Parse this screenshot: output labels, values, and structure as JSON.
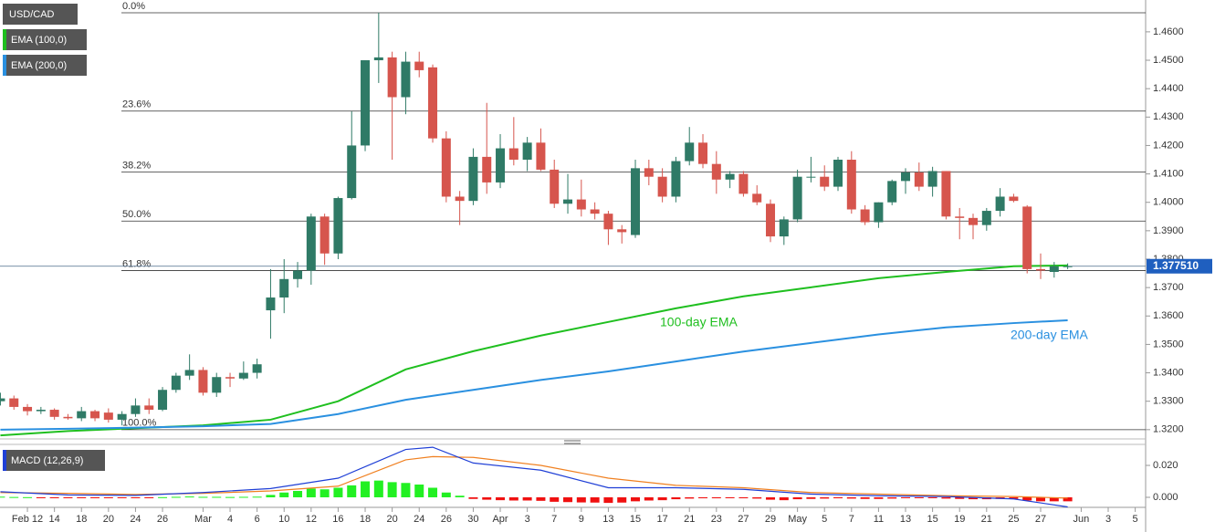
{
  "chart_data": [
    {
      "type": "candlestick",
      "symbol": "USD/CAD",
      "up_color": "#2f7a66",
      "down_color": "#d6554d",
      "xlim": [
        -0.03,
        84.77
      ],
      "ylim": [
        1.3177,
        1.4712
      ],
      "yticks": [
        {
          "value": 1.32,
          "label": "1.3200"
        },
        {
          "value": 1.33,
          "label": "1.3300"
        },
        {
          "value": 1.34,
          "label": "1.3400"
        },
        {
          "value": 1.35,
          "label": "1.3500"
        },
        {
          "value": 1.36,
          "label": "1.3600"
        },
        {
          "value": 1.37,
          "label": "1.3700"
        },
        {
          "value": 1.38,
          "label": "1.3800"
        },
        {
          "value": 1.39,
          "label": "1.3900"
        },
        {
          "value": 1.4,
          "label": "1.4000"
        },
        {
          "value": 1.41,
          "label": "1.4100"
        },
        {
          "value": 1.42,
          "label": "1.4200"
        },
        {
          "value": 1.43,
          "label": "1.4300"
        },
        {
          "value": 1.44,
          "label": "1.4400"
        },
        {
          "value": 1.45,
          "label": "1.4500"
        },
        {
          "value": 1.46,
          "label": "1.4600"
        }
      ],
      "open": [
        1.33,
        1.331,
        1.328,
        1.3265,
        1.327,
        1.3245,
        1.324,
        1.3265,
        1.326,
        1.3235,
        1.3255,
        1.3285,
        1.327,
        1.334,
        1.339,
        1.341,
        1.333,
        1.3385,
        1.338,
        1.34,
        1.362,
        1.3665,
        1.373,
        1.376,
        1.395,
        1.382,
        1.4015,
        1.42,
        1.45,
        1.451,
        1.437,
        1.4495,
        1.4475,
        1.4225,
        1.402,
        1.4005,
        1.416,
        1.407,
        1.419,
        1.415,
        1.421,
        1.4115,
        1.3995,
        1.401,
        1.3975,
        1.396,
        1.3905,
        1.3885,
        1.412,
        1.409,
        1.402,
        1.4145,
        1.421,
        1.4135,
        1.408,
        1.41,
        1.403,
        1.3995,
        1.388,
        1.394,
        1.409,
        1.409,
        1.4055,
        1.415,
        1.3975,
        1.393,
        1.4,
        1.4075,
        1.4105,
        1.4055,
        1.411,
        1.395,
        1.3945,
        1.392,
        1.397,
        1.402,
        1.3985,
        1.3765,
        1.3755,
        1.3775
      ],
      "high": [
        1.333,
        1.332,
        1.329,
        1.328,
        1.3275,
        1.3255,
        1.328,
        1.327,
        1.3275,
        1.3265,
        1.331,
        1.331,
        1.335,
        1.34,
        1.3465,
        1.342,
        1.34,
        1.34,
        1.344,
        1.345,
        1.3765,
        1.38,
        1.379,
        1.396,
        1.396,
        1.402,
        1.432,
        1.45,
        1.4667,
        1.453,
        1.453,
        1.453,
        1.4485,
        1.425,
        1.404,
        1.419,
        1.435,
        1.424,
        1.43,
        1.423,
        1.426,
        1.415,
        1.41,
        1.408,
        1.4,
        1.397,
        1.392,
        1.415,
        1.415,
        1.412,
        1.416,
        1.4265,
        1.424,
        1.418,
        1.411,
        1.411,
        1.406,
        1.401,
        1.395,
        1.4115,
        1.416,
        1.413,
        1.416,
        1.418,
        1.399,
        1.4,
        1.408,
        1.412,
        1.414,
        1.4125,
        1.411,
        1.398,
        1.396,
        1.398,
        1.405,
        1.403,
        1.399,
        1.382,
        1.379,
        1.3785
      ],
      "low": [
        1.3285,
        1.327,
        1.325,
        1.3255,
        1.3235,
        1.3235,
        1.323,
        1.323,
        1.3225,
        1.3215,
        1.3245,
        1.3255,
        1.3265,
        1.333,
        1.3375,
        1.332,
        1.3315,
        1.335,
        1.3375,
        1.338,
        1.352,
        1.361,
        1.37,
        1.371,
        1.378,
        1.38,
        1.401,
        1.418,
        1.442,
        1.415,
        1.431,
        1.444,
        1.421,
        1.4,
        1.392,
        1.399,
        1.403,
        1.405,
        1.413,
        1.411,
        1.411,
        1.398,
        1.396,
        1.395,
        1.394,
        1.385,
        1.3855,
        1.3875,
        1.406,
        1.4,
        1.4,
        1.413,
        1.412,
        1.403,
        1.405,
        1.402,
        1.399,
        1.386,
        1.385,
        1.393,
        1.407,
        1.404,
        1.404,
        1.396,
        1.392,
        1.391,
        1.399,
        1.403,
        1.404,
        1.402,
        1.394,
        1.387,
        1.387,
        1.39,
        1.395,
        1.4,
        1.375,
        1.373,
        1.3735,
        1.3765
      ],
      "close": [
        1.331,
        1.328,
        1.3265,
        1.327,
        1.3245,
        1.324,
        1.3265,
        1.324,
        1.3235,
        1.3255,
        1.3285,
        1.327,
        1.334,
        1.339,
        1.341,
        1.333,
        1.3385,
        1.338,
        1.34,
        1.343,
        1.3665,
        1.373,
        1.376,
        1.395,
        1.382,
        1.4015,
        1.42,
        1.45,
        1.451,
        1.437,
        1.4495,
        1.4465,
        1.4225,
        1.402,
        1.4005,
        1.416,
        1.407,
        1.419,
        1.415,
        1.421,
        1.4115,
        1.3995,
        1.401,
        1.3975,
        1.396,
        1.3905,
        1.3895,
        1.412,
        1.409,
        1.402,
        1.4145,
        1.421,
        1.4135,
        1.408,
        1.41,
        1.403,
        1.4,
        1.388,
        1.394,
        1.409,
        1.409,
        1.4055,
        1.415,
        1.3975,
        1.393,
        1.4,
        1.4075,
        1.4105,
        1.4055,
        1.411,
        1.395,
        1.3945,
        1.392,
        1.397,
        1.402,
        1.4005,
        1.3765,
        1.376,
        1.3775,
        1.37751
      ],
      "overlay_x": [
        0,
        5,
        10,
        15,
        20,
        25,
        30,
        35,
        40,
        45,
        50,
        55,
        60,
        65,
        70,
        75,
        79
      ],
      "series": [
        {
          "name": "EMA (100,0)",
          "color": "#1fbf1f",
          "values": [
            1.318,
            1.3195,
            1.3205,
            1.3215,
            1.3235,
            1.33,
            1.3412,
            1.3476,
            1.3531,
            1.3579,
            1.3627,
            1.3669,
            1.3701,
            1.3733,
            1.3755,
            1.3775,
            1.3778
          ]
        },
        {
          "name": "EMA (200,0)",
          "color": "#2a90e0",
          "values": [
            1.32,
            1.3203,
            1.3207,
            1.3212,
            1.322,
            1.3255,
            1.3305,
            1.334,
            1.3375,
            1.3405,
            1.344,
            1.3475,
            1.3505,
            1.3535,
            1.356,
            1.3575,
            1.3585
          ]
        }
      ],
      "annotations": [
        {
          "text": "100-day EMA",
          "color": "#1fbf1f"
        },
        {
          "text": "200-day EMA",
          "color": "#2a90e0"
        }
      ],
      "levels": [
        {
          "value": 1.4667,
          "label": "0.0%"
        },
        {
          "value": 1.4321,
          "label": "23.6%"
        },
        {
          "value": 1.4107,
          "label": "38.2%"
        },
        {
          "value": 1.3934,
          "label": "50.0%"
        },
        {
          "value": 1.376,
          "label": "61.8%"
        },
        {
          "value": 1.32,
          "label": "100.0%"
        }
      ],
      "last_price": {
        "value": 1.37751,
        "label": "1.377510"
      }
    },
    {
      "type": "macd",
      "legend": "MACD (12,26,9)",
      "xlim": [
        -0.03,
        84.77
      ],
      "ylim": [
        -0.0063,
        0.0326
      ],
      "yticks": [
        {
          "value": 0.0,
          "label": "0.000"
        },
        {
          "value": 0.02,
          "label": "0.020"
        }
      ],
      "xticks": [
        {
          "value": 2,
          "label": "Feb 12"
        },
        {
          "value": 4,
          "label": "14"
        },
        {
          "value": 6,
          "label": "18"
        },
        {
          "value": 8,
          "label": "20"
        },
        {
          "value": 10,
          "label": "24"
        },
        {
          "value": 12,
          "label": "26"
        },
        {
          "value": 15,
          "label": "Mar"
        },
        {
          "value": 17,
          "label": "4"
        },
        {
          "value": 19,
          "label": "6"
        },
        {
          "value": 21,
          "label": "10"
        },
        {
          "value": 23,
          "label": "12"
        },
        {
          "value": 25,
          "label": "16"
        },
        {
          "value": 27,
          "label": "18"
        },
        {
          "value": 29,
          "label": "20"
        },
        {
          "value": 31,
          "label": "24"
        },
        {
          "value": 33,
          "label": "26"
        },
        {
          "value": 35,
          "label": "30"
        },
        {
          "value": 37,
          "label": "Apr"
        },
        {
          "value": 39,
          "label": "3"
        },
        {
          "value": 41,
          "label": "7"
        },
        {
          "value": 43,
          "label": "9"
        },
        {
          "value": 45,
          "label": "13"
        },
        {
          "value": 47,
          "label": "15"
        },
        {
          "value": 49,
          "label": "17"
        },
        {
          "value": 51,
          "label": "21"
        },
        {
          "value": 53,
          "label": "23"
        },
        {
          "value": 55,
          "label": "27"
        },
        {
          "value": 57,
          "label": "29"
        },
        {
          "value": 59,
          "label": "May"
        },
        {
          "value": 61,
          "label": "5"
        },
        {
          "value": 63,
          "label": "7"
        },
        {
          "value": 65,
          "label": "11"
        },
        {
          "value": 67,
          "label": "13"
        },
        {
          "value": 69,
          "label": "15"
        },
        {
          "value": 71,
          "label": "19"
        },
        {
          "value": 73,
          "label": "21"
        },
        {
          "value": 75,
          "label": "25"
        },
        {
          "value": 77,
          "label": "27"
        },
        {
          "value": 80,
          "label": "Jun"
        },
        {
          "value": 82,
          "label": "3"
        },
        {
          "value": 84,
          "label": "5"
        }
      ],
      "hist_up_color": "#22f022",
      "hist_down_color": "#f01010",
      "histogram": [
        0.0004,
        0.0002,
        0.0001,
        -0.0001,
        -0.0002,
        -0.0003,
        -0.0003,
        -0.0004,
        -0.0004,
        -0.0003,
        -0.0002,
        -0.0002,
        0.0001,
        0.0003,
        0.0005,
        0.0003,
        0.0003,
        0.0002,
        0.0003,
        0.0004,
        0.0015,
        0.003,
        0.004,
        0.0055,
        0.005,
        0.006,
        0.0075,
        0.01,
        0.0105,
        0.0095,
        0.009,
        0.008,
        0.006,
        0.003,
        0.001,
        -0.001,
        -0.0015,
        -0.0018,
        -0.002,
        -0.002,
        -0.0022,
        -0.0028,
        -0.003,
        -0.0032,
        -0.0033,
        -0.0035,
        -0.0033,
        -0.0025,
        -0.002,
        -0.0018,
        -0.0012,
        -0.0008,
        -0.0006,
        -0.0006,
        -0.0005,
        -0.0006,
        -0.0008,
        -0.0015,
        -0.0018,
        -0.0012,
        -0.001,
        -0.0008,
        -0.0006,
        -0.0008,
        -0.001,
        -0.001,
        -0.0008,
        -0.0005,
        -0.0004,
        -0.0003,
        -0.0008,
        -0.001,
        -0.0012,
        -0.0012,
        -0.001,
        -0.001,
        -0.002,
        -0.0025,
        -0.0025,
        -0.0025
      ],
      "line_x": [
        0,
        5,
        10,
        15,
        20,
        25,
        30,
        32,
        35,
        40,
        45,
        50,
        55,
        60,
        65,
        70,
        75,
        79
      ],
      "macd_color": "#1f3fd6",
      "macd": [
        0.0035,
        0.0015,
        0.0012,
        0.003,
        0.0055,
        0.012,
        0.03,
        0.0314,
        0.0215,
        0.017,
        0.006,
        0.006,
        0.005,
        0.002,
        0.001,
        0.0005,
        -0.001,
        -0.006
      ],
      "signal_color": "#f08020",
      "signal": [
        0.003,
        0.0025,
        0.0018,
        0.0025,
        0.004,
        0.007,
        0.0235,
        0.0255,
        0.025,
        0.02,
        0.012,
        0.0075,
        0.006,
        0.003,
        0.002,
        0.001,
        0.0005,
        -0.0005
      ]
    }
  ]
}
